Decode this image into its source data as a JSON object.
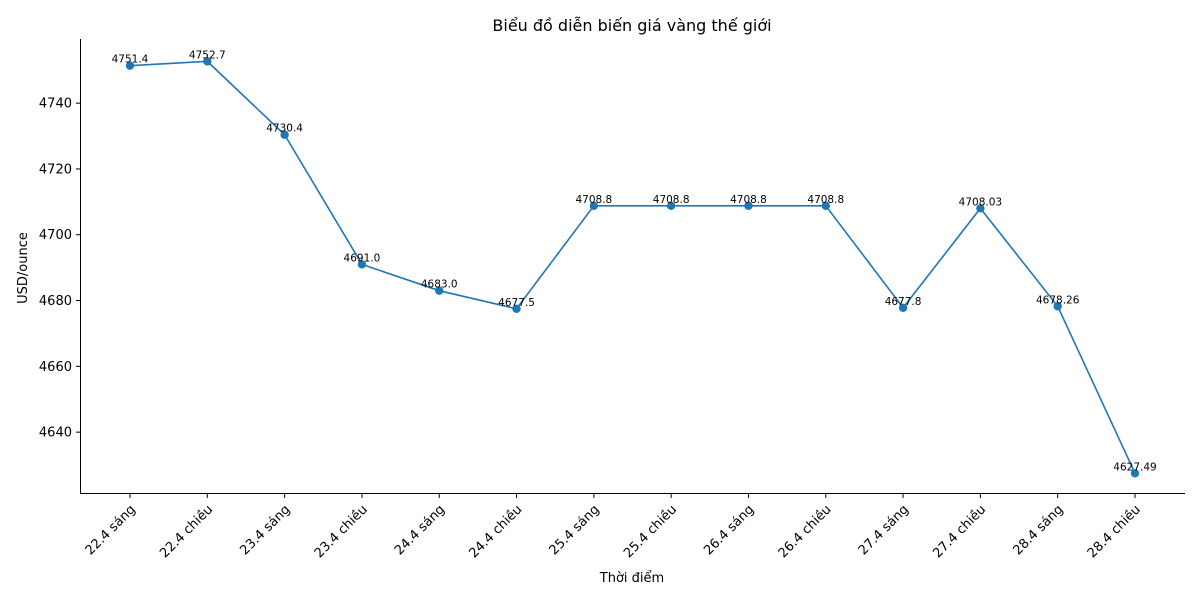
{
  "chart_data": {
    "type": "line",
    "title": "Biểu đồ diễn biến giá vàng thế giới",
    "xlabel": "Thời điểm",
    "ylabel": "USD/ounce",
    "categories": [
      "22.4 sáng",
      "22.4 chiều",
      "23.4 sáng",
      "23.4 chiều",
      "24.4 sáng",
      "24.4 chiều",
      "25.4 sáng",
      "25.4 chiều",
      "26.4 sáng",
      "26.4 chiều",
      "27.4 sáng",
      "27.4 chiều",
      "28.4 sáng",
      "28.4 chiều"
    ],
    "values": [
      4751.4,
      4752.7,
      4730.4,
      4691.0,
      4683.0,
      4677.5,
      4708.8,
      4708.8,
      4708.8,
      4708.8,
      4677.8,
      4708.03,
      4678.26,
      4627.49
    ],
    "value_labels": [
      "4751.4",
      "4752.7",
      "4730.4",
      "4691.0",
      "4683.0",
      "4677.5",
      "4708.8",
      "4708.8",
      "4708.8",
      "4708.8",
      "4677.8",
      "4708.03",
      "4678.26",
      "4627.49"
    ],
    "yticks": [
      4640,
      4660,
      4680,
      4700,
      4720,
      4740
    ],
    "ylim": [
      4621.5,
      4759.5
    ],
    "grid": false,
    "legend": null,
    "markers": true,
    "line_color": "#1f77b4",
    "xtick_rotation": 45
  }
}
